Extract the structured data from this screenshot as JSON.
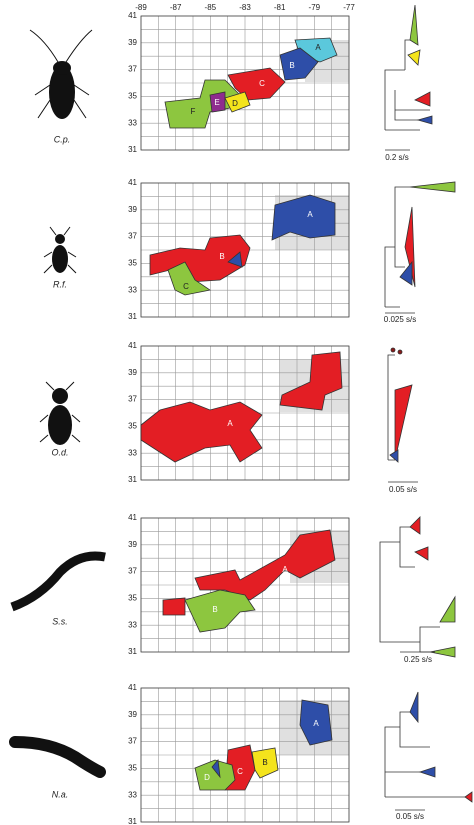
{
  "x_ticks": [
    -89,
    -87,
    -85,
    -83,
    -81,
    -79,
    -77
  ],
  "y_ticks": [
    41,
    39,
    37,
    35,
    33,
    31
  ],
  "panels": [
    {
      "species": "C.p.",
      "regions": [
        "A",
        "B",
        "C",
        "D",
        "E",
        "F"
      ],
      "scale": "0.2 s/s"
    },
    {
      "species": "R.f.",
      "regions": [
        "A",
        "B",
        "C"
      ],
      "scale": "0.025 s/s"
    },
    {
      "species": "O.d.",
      "regions": [
        "A"
      ],
      "scale": "0.05 s/s"
    },
    {
      "species": "S.s.",
      "regions": [
        "A",
        "B"
      ],
      "scale": "0.25 s/s"
    },
    {
      "species": "N.a.",
      "regions": [
        "A",
        "B",
        "C",
        "D"
      ],
      "scale": "0.05 s/s"
    }
  ]
}
